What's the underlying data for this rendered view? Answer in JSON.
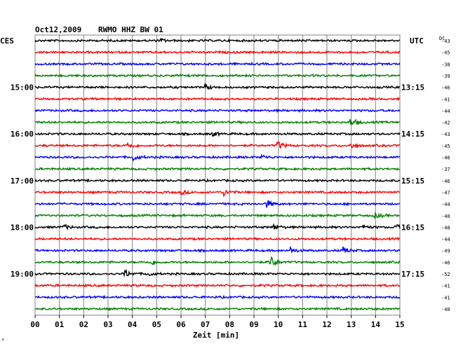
{
  "header": {
    "date": "Oct12,2009",
    "station": "RWMO HHZ BW 01",
    "left_tz": "CES",
    "right_tz": "UTC",
    "dc_label": "DC"
  },
  "colors": {
    "black": "#000000",
    "red": "#ff0000",
    "blue": "#0000ff",
    "green": "#007f00",
    "grid": "#808080"
  },
  "chart_data": {
    "type": "line",
    "title": "Oct12,2009 RWMO HHZ BW 01",
    "xlabel": "Zeit [min]",
    "ylabel": "",
    "x_ticks": [
      "00",
      "01",
      "02",
      "03",
      "04",
      "05",
      "06",
      "07",
      "08",
      "09",
      "10",
      "11",
      "12",
      "13",
      "14",
      "15"
    ],
    "xlim": [
      0,
      15
    ],
    "grid": true,
    "left_time_labels": [
      {
        "row": 4,
        "label": "15:00"
      },
      {
        "row": 8,
        "label": "16:00"
      },
      {
        "row": 12,
        "label": "17:00"
      },
      {
        "row": 16,
        "label": "18:00"
      },
      {
        "row": 20,
        "label": "19:00"
      }
    ],
    "right_time_labels": [
      {
        "row": 4,
        "label": "13:15"
      },
      {
        "row": 8,
        "label": "14:15"
      },
      {
        "row": 12,
        "label": "15:15"
      },
      {
        "row": 16,
        "label": "16:15"
      },
      {
        "row": 20,
        "label": "17:15"
      }
    ],
    "trace_colors": [
      "black",
      "red",
      "blue",
      "green"
    ],
    "dc_offsets": [
      "-43",
      "-45",
      "-38",
      "-39",
      "-46",
      "-41",
      "-44",
      "-42",
      "-43",
      "-45",
      "-46",
      "-37",
      "-46",
      "-47",
      "-44",
      "-40",
      "-48",
      "-44",
      "-49",
      "-46",
      "-52",
      "-41",
      "-41",
      "-40"
    ],
    "trace_count": 24,
    "trace_end_min": [
      15,
      15,
      15,
      15,
      15,
      15,
      15,
      15,
      15,
      15,
      15,
      15,
      15,
      15,
      15,
      15,
      15,
      15,
      15,
      15,
      15,
      15,
      15,
      15
    ],
    "events": [
      {
        "row": 0,
        "t": 5.2,
        "amp": 2
      },
      {
        "row": 4,
        "t": 7.0,
        "amp": 3
      },
      {
        "row": 7,
        "t": 13.0,
        "amp": 5
      },
      {
        "row": 8,
        "t": 7.3,
        "amp": 3
      },
      {
        "row": 9,
        "t": 3.8,
        "amp": 4
      },
      {
        "row": 9,
        "t": 10.0,
        "amp": 5
      },
      {
        "row": 9,
        "t": 13.0,
        "amp": 3
      },
      {
        "row": 10,
        "t": 4.0,
        "amp": 5
      },
      {
        "row": 10,
        "t": 9.3,
        "amp": 3
      },
      {
        "row": 13,
        "t": 6.0,
        "amp": 3
      },
      {
        "row": 13,
        "t": 7.8,
        "amp": 4
      },
      {
        "row": 14,
        "t": 9.5,
        "amp": 5
      },
      {
        "row": 15,
        "t": 14.0,
        "amp": 3
      },
      {
        "row": 16,
        "t": 1.2,
        "amp": 3
      },
      {
        "row": 16,
        "t": 9.8,
        "amp": 4
      },
      {
        "row": 16,
        "t": 13.5,
        "amp": 3
      },
      {
        "row": 16,
        "t": 14.8,
        "amp": 4
      },
      {
        "row": 18,
        "t": 10.5,
        "amp": 4
      },
      {
        "row": 18,
        "t": 12.7,
        "amp": 4
      },
      {
        "row": 19,
        "t": 4.8,
        "amp": 3
      },
      {
        "row": 19,
        "t": 9.7,
        "amp": 8
      },
      {
        "row": 20,
        "t": 3.7,
        "amp": 5
      },
      {
        "row": 20,
        "t": 4.6,
        "amp": 3
      }
    ]
  }
}
